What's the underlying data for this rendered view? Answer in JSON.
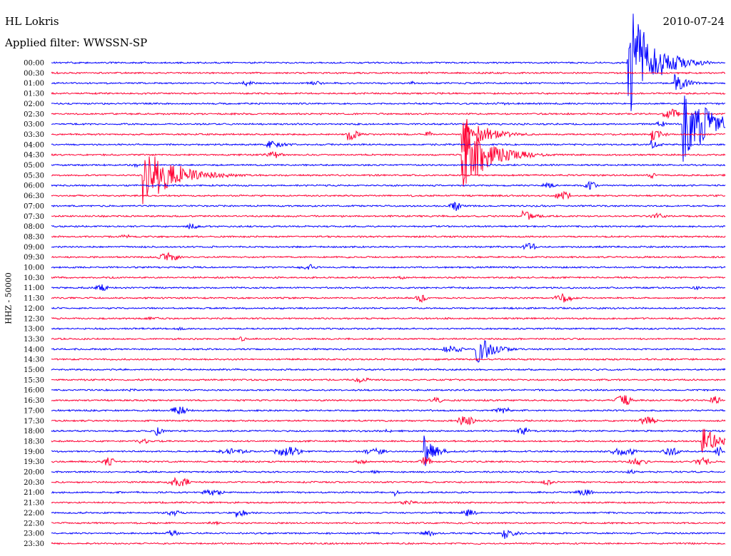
{
  "header": {
    "station": "HL Lokris",
    "date": "2010-07-24",
    "filter": "Applied filter: WWSSN-SP"
  },
  "chart_data": {
    "type": "line",
    "subtype": "helicorder",
    "ylabel": "HHZ - 50000",
    "tick_labels": [
      "00:00",
      "00:30",
      "01:00",
      "01:30",
      "02:00",
      "02:30",
      "03:00",
      "03:30",
      "04:00",
      "04:30",
      "05:00",
      "05:30",
      "06:00",
      "06:30",
      "07:00",
      "07:30",
      "08:00",
      "08:30",
      "09:00",
      "09:30",
      "10:00",
      "10:30",
      "11:00",
      "11:30",
      "12:00",
      "12:30",
      "13:00",
      "13:30",
      "14:00",
      "14:30",
      "15:00",
      "15:30",
      "16:00",
      "16:30",
      "17:00",
      "17:30",
      "18:00",
      "18:30",
      "19:00",
      "19:30",
      "20:00",
      "20:30",
      "21:00",
      "21:30",
      "22:00",
      "22:30",
      "23:00",
      "23:30"
    ],
    "colors": [
      "#0000ff",
      "#ff0033"
    ],
    "minutes_per_line": 30,
    "events": [
      {
        "row": 0,
        "t": 0.855,
        "amp": 90,
        "dur": 0.05,
        "kind": "quake"
      },
      {
        "row": 0,
        "t": 0.52,
        "amp": 1.5,
        "dur": 0.01,
        "kind": "burst"
      },
      {
        "row": 1,
        "t": 0.56,
        "amp": 2,
        "dur": 0.01,
        "kind": "burst"
      },
      {
        "row": 2,
        "t": 0.285,
        "amp": 6,
        "dur": 0.015,
        "kind": "quake"
      },
      {
        "row": 2,
        "t": 0.39,
        "amp": 3,
        "dur": 0.03,
        "kind": "burst"
      },
      {
        "row": 2,
        "t": 0.535,
        "amp": 3,
        "dur": 0.01,
        "kind": "burst"
      },
      {
        "row": 2,
        "t": 0.925,
        "amp": 14,
        "dur": 0.025,
        "kind": "quake"
      },
      {
        "row": 4,
        "t": 0.67,
        "amp": 2,
        "dur": 0.03,
        "kind": "burst"
      },
      {
        "row": 5,
        "t": 0.92,
        "amp": 8,
        "dur": 0.03,
        "kind": "burst"
      },
      {
        "row": 6,
        "t": 0.905,
        "amp": 4,
        "dur": 0.02,
        "kind": "burst"
      },
      {
        "row": 6,
        "t": 0.937,
        "amp": 55,
        "dur": 0.06,
        "kind": "quake"
      },
      {
        "row": 7,
        "t": 0.44,
        "amp": 12,
        "dur": 0.015,
        "kind": "quake"
      },
      {
        "row": 7,
        "t": 0.56,
        "amp": 5,
        "dur": 0.01,
        "kind": "burst"
      },
      {
        "row": 7,
        "t": 0.61,
        "amp": 28,
        "dur": 0.05,
        "kind": "quake"
      },
      {
        "row": 7,
        "t": 0.89,
        "amp": 10,
        "dur": 0.02,
        "kind": "quake"
      },
      {
        "row": 8,
        "t": 0.32,
        "amp": 8,
        "dur": 0.03,
        "kind": "quake"
      },
      {
        "row": 8,
        "t": 0.89,
        "amp": 7,
        "dur": 0.015,
        "kind": "quake"
      },
      {
        "row": 9,
        "t": 0.33,
        "amp": 5,
        "dur": 0.03,
        "kind": "burst"
      },
      {
        "row": 9,
        "t": 0.61,
        "amp": 52,
        "dur": 0.06,
        "kind": "quake"
      },
      {
        "row": 10,
        "t": 0.126,
        "amp": 3,
        "dur": 0.015,
        "kind": "burst"
      },
      {
        "row": 11,
        "t": 0.136,
        "amp": 45,
        "dur": 0.07,
        "kind": "quake"
      },
      {
        "row": 11,
        "t": 0.89,
        "amp": 4,
        "dur": 0.015,
        "kind": "burst"
      },
      {
        "row": 12,
        "t": 0.74,
        "amp": 4,
        "dur": 0.03,
        "kind": "burst"
      },
      {
        "row": 12,
        "t": 0.8,
        "amp": 7,
        "dur": 0.02,
        "kind": "burst"
      },
      {
        "row": 13,
        "t": 0.76,
        "amp": 6,
        "dur": 0.03,
        "kind": "burst"
      },
      {
        "row": 14,
        "t": 0.6,
        "amp": 8,
        "dur": 0.02,
        "kind": "burst"
      },
      {
        "row": 15,
        "t": 0.7,
        "amp": 10,
        "dur": 0.02,
        "kind": "quake"
      },
      {
        "row": 15,
        "t": 0.9,
        "amp": 4,
        "dur": 0.03,
        "kind": "burst"
      },
      {
        "row": 16,
        "t": 0.21,
        "amp": 5,
        "dur": 0.02,
        "kind": "burst"
      },
      {
        "row": 17,
        "t": 0.11,
        "amp": 3,
        "dur": 0.02,
        "kind": "burst"
      },
      {
        "row": 18,
        "t": 0.71,
        "amp": 5,
        "dur": 0.03,
        "kind": "burst"
      },
      {
        "row": 19,
        "t": 0.175,
        "amp": 6,
        "dur": 0.04,
        "kind": "burst"
      },
      {
        "row": 20,
        "t": 0.38,
        "amp": 5,
        "dur": 0.03,
        "kind": "burst"
      },
      {
        "row": 21,
        "t": 0.52,
        "amp": 3,
        "dur": 0.01,
        "kind": "burst"
      },
      {
        "row": 22,
        "t": 0.075,
        "amp": 6,
        "dur": 0.02,
        "kind": "burst"
      },
      {
        "row": 22,
        "t": 0.96,
        "amp": 3,
        "dur": 0.02,
        "kind": "burst"
      },
      {
        "row": 23,
        "t": 0.55,
        "amp": 6,
        "dur": 0.02,
        "kind": "burst"
      },
      {
        "row": 23,
        "t": 0.76,
        "amp": 7,
        "dur": 0.03,
        "kind": "burst"
      },
      {
        "row": 25,
        "t": 0.15,
        "amp": 2,
        "dur": 0.03,
        "kind": "burst"
      },
      {
        "row": 26,
        "t": 0.19,
        "amp": 2,
        "dur": 0.02,
        "kind": "burst"
      },
      {
        "row": 27,
        "t": 0.28,
        "amp": 5,
        "dur": 0.01,
        "kind": "quake"
      },
      {
        "row": 28,
        "t": 0.595,
        "amp": 5,
        "dur": 0.04,
        "kind": "burst"
      },
      {
        "row": 28,
        "t": 0.63,
        "amp": 26,
        "dur": 0.03,
        "kind": "quake"
      },
      {
        "row": 28,
        "t": 0.67,
        "amp": 3,
        "dur": 0.03,
        "kind": "burst"
      },
      {
        "row": 31,
        "t": 0.46,
        "amp": 4,
        "dur": 0.03,
        "kind": "burst"
      },
      {
        "row": 32,
        "t": 0.12,
        "amp": 2,
        "dur": 0.02,
        "kind": "burst"
      },
      {
        "row": 33,
        "t": 0.57,
        "amp": 6,
        "dur": 0.02,
        "kind": "burst"
      },
      {
        "row": 33,
        "t": 0.85,
        "amp": 7,
        "dur": 0.03,
        "kind": "burst"
      },
      {
        "row": 33,
        "t": 0.985,
        "amp": 8,
        "dur": 0.015,
        "kind": "burst"
      },
      {
        "row": 34,
        "t": 0.19,
        "amp": 6,
        "dur": 0.03,
        "kind": "burst"
      },
      {
        "row": 34,
        "t": 0.67,
        "amp": 5,
        "dur": 0.03,
        "kind": "burst"
      },
      {
        "row": 35,
        "t": 0.615,
        "amp": 7,
        "dur": 0.03,
        "kind": "burst"
      },
      {
        "row": 35,
        "t": 0.885,
        "amp": 6,
        "dur": 0.03,
        "kind": "burst"
      },
      {
        "row": 36,
        "t": 0.155,
        "amp": 8,
        "dur": 0.01,
        "kind": "quake"
      },
      {
        "row": 36,
        "t": 0.5,
        "amp": 3,
        "dur": 0.01,
        "kind": "burst"
      },
      {
        "row": 36,
        "t": 0.7,
        "amp": 6,
        "dur": 0.02,
        "kind": "burst"
      },
      {
        "row": 37,
        "t": 0.135,
        "amp": 4,
        "dur": 0.02,
        "kind": "burst"
      },
      {
        "row": 37,
        "t": 0.965,
        "amp": 24,
        "dur": 0.03,
        "kind": "quake"
      },
      {
        "row": 38,
        "t": 0.27,
        "amp": 4,
        "dur": 0.06,
        "kind": "burst"
      },
      {
        "row": 38,
        "t": 0.35,
        "amp": 7,
        "dur": 0.05,
        "kind": "burst"
      },
      {
        "row": 38,
        "t": 0.48,
        "amp": 5,
        "dur": 0.04,
        "kind": "burst"
      },
      {
        "row": 38,
        "t": 0.553,
        "amp": 24,
        "dur": 0.02,
        "kind": "quake"
      },
      {
        "row": 38,
        "t": 0.85,
        "amp": 6,
        "dur": 0.05,
        "kind": "burst"
      },
      {
        "row": 38,
        "t": 0.92,
        "amp": 6,
        "dur": 0.03,
        "kind": "burst"
      },
      {
        "row": 38,
        "t": 0.99,
        "amp": 7,
        "dur": 0.01,
        "kind": "burst"
      },
      {
        "row": 39,
        "t": 0.085,
        "amp": 6,
        "dur": 0.02,
        "kind": "burst"
      },
      {
        "row": 39,
        "t": 0.46,
        "amp": 3,
        "dur": 0.03,
        "kind": "burst"
      },
      {
        "row": 39,
        "t": 0.555,
        "amp": 7,
        "dur": 0.02,
        "kind": "burst"
      },
      {
        "row": 39,
        "t": 0.87,
        "amp": 5,
        "dur": 0.04,
        "kind": "burst"
      },
      {
        "row": 39,
        "t": 0.965,
        "amp": 6,
        "dur": 0.03,
        "kind": "burst"
      },
      {
        "row": 40,
        "t": 0.48,
        "amp": 2,
        "dur": 0.02,
        "kind": "burst"
      },
      {
        "row": 40,
        "t": 0.86,
        "amp": 3,
        "dur": 0.02,
        "kind": "burst"
      },
      {
        "row": 41,
        "t": 0.19,
        "amp": 7,
        "dur": 0.04,
        "kind": "burst"
      },
      {
        "row": 41,
        "t": 0.735,
        "amp": 4,
        "dur": 0.02,
        "kind": "burst"
      },
      {
        "row": 42,
        "t": 0.24,
        "amp": 5,
        "dur": 0.04,
        "kind": "burst"
      },
      {
        "row": 42,
        "t": 0.51,
        "amp": 7,
        "dur": 0.005,
        "kind": "quake"
      },
      {
        "row": 42,
        "t": 0.79,
        "amp": 4,
        "dur": 0.04,
        "kind": "burst"
      },
      {
        "row": 43,
        "t": 0.53,
        "amp": 3,
        "dur": 0.03,
        "kind": "burst"
      },
      {
        "row": 44,
        "t": 0.18,
        "amp": 4,
        "dur": 0.03,
        "kind": "burst"
      },
      {
        "row": 44,
        "t": 0.275,
        "amp": 8,
        "dur": 0.02,
        "kind": "quake"
      },
      {
        "row": 44,
        "t": 0.62,
        "amp": 5,
        "dur": 0.03,
        "kind": "burst"
      },
      {
        "row": 45,
        "t": 0.24,
        "amp": 3,
        "dur": 0.02,
        "kind": "burst"
      },
      {
        "row": 46,
        "t": 0.18,
        "amp": 5,
        "dur": 0.02,
        "kind": "burst"
      },
      {
        "row": 46,
        "t": 0.56,
        "amp": 4,
        "dur": 0.03,
        "kind": "burst"
      },
      {
        "row": 46,
        "t": 0.67,
        "amp": 10,
        "dur": 0.02,
        "kind": "quake"
      }
    ]
  }
}
